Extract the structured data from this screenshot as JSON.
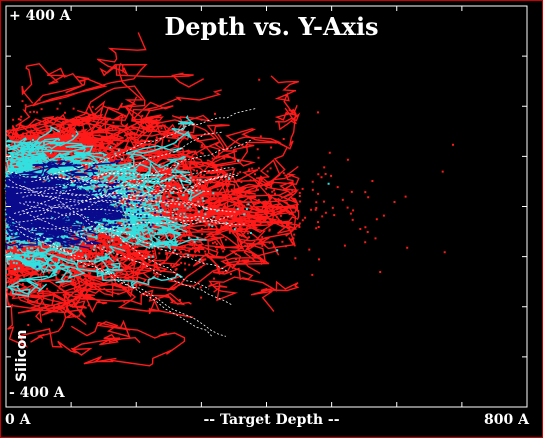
{
  "chart_data": {
    "type": "scatter",
    "title": "Depth vs. Y-Axis",
    "xlabel": "-- Target Depth --",
    "x_min_label": "0 A",
    "x_max_label": "800 A",
    "y_max_label": "+ 400 A",
    "y_min_label": "- 400 A",
    "target_label": "Silicon",
    "xlim": [
      0,
      800
    ],
    "ylim": [
      -400,
      400
    ],
    "grid": false,
    "series": [
      {
        "color": "#0a0a8c",
        "extent": 180,
        "spread": 55,
        "count": 4200
      },
      {
        "color": "#33e0e0",
        "extent": 290,
        "spread": 110,
        "count": 3200
      },
      {
        "color": "#ff1a1a",
        "extent": 450,
        "spread": 175,
        "count": 5200
      }
    ],
    "colors": {
      "frame": "#cc0000",
      "axis": "#ffffff",
      "background": "#000000"
    }
  }
}
